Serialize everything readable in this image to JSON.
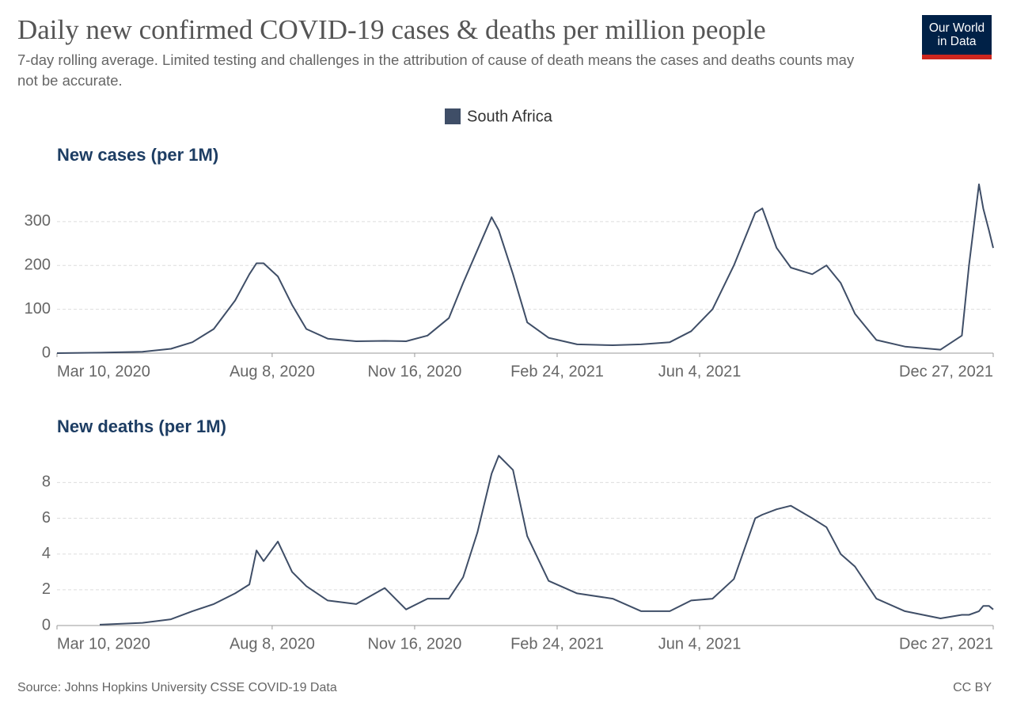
{
  "title": "Daily new confirmed COVID-19 cases & deaths per million people",
  "subtitle": "7-day rolling average. Limited testing and challenges in the attribution of cause of death means the cases and deaths counts may not be accurate.",
  "logo": "Our World in Data",
  "source": "Source: Johns Hopkins University CSSE COVID-19 Data",
  "license": "CC BY",
  "chart_data": [
    {
      "type": "line",
      "title": "New cases (per 1M)",
      "x": [
        "2020-03-10",
        "2020-04-09",
        "2020-05-09",
        "2020-05-29",
        "2020-06-13",
        "2020-06-28",
        "2020-07-13",
        "2020-07-23",
        "2020-07-28",
        "2020-08-02",
        "2020-08-12",
        "2020-08-22",
        "2020-09-01",
        "2020-09-16",
        "2020-10-06",
        "2020-10-26",
        "2020-11-10",
        "2020-11-25",
        "2020-12-10",
        "2020-12-20",
        "2020-12-30",
        "2021-01-09",
        "2021-01-14",
        "2021-01-24",
        "2021-02-03",
        "2021-02-18",
        "2021-03-10",
        "2021-04-04",
        "2021-04-24",
        "2021-05-14",
        "2021-05-29",
        "2021-06-13",
        "2021-06-28",
        "2021-07-13",
        "2021-07-18",
        "2021-07-28",
        "2021-08-07",
        "2021-08-22",
        "2021-09-01",
        "2021-09-11",
        "2021-09-21",
        "2021-10-06",
        "2021-10-26",
        "2021-11-20",
        "2021-12-05",
        "2021-12-10",
        "2021-12-17",
        "2021-12-20",
        "2021-12-24",
        "2021-12-27"
      ],
      "series": [
        {
          "name": "South Africa",
          "color": "#3f4e67",
          "values": [
            0,
            1,
            3,
            10,
            25,
            55,
            120,
            180,
            205,
            205,
            175,
            110,
            55,
            33,
            27,
            28,
            27,
            40,
            80,
            160,
            235,
            310,
            280,
            180,
            70,
            35,
            20,
            18,
            20,
            25,
            50,
            100,
            200,
            320,
            330,
            240,
            195,
            180,
            200,
            160,
            90,
            30,
            15,
            8,
            40,
            200,
            385,
            330,
            280,
            240
          ]
        }
      ],
      "xlim": [
        "2020-03-10",
        "2021-12-27"
      ],
      "xticks": [
        {
          "value": "2020-03-10",
          "label": "Mar 10, 2020"
        },
        {
          "value": "2020-08-08",
          "label": "Aug 8, 2020"
        },
        {
          "value": "2020-11-16",
          "label": "Nov 16, 2020"
        },
        {
          "value": "2021-02-24",
          "label": "Feb 24, 2021"
        },
        {
          "value": "2021-06-04",
          "label": "Jun 4, 2021"
        },
        {
          "value": "2021-12-27",
          "label": "Dec 27, 2021"
        }
      ],
      "ylim": [
        0,
        390
      ],
      "yticks": [
        0,
        100,
        200,
        300
      ],
      "grid": true
    },
    {
      "type": "line",
      "title": "New deaths (per 1M)",
      "x": [
        "2020-03-10",
        "2020-04-09",
        "2020-05-09",
        "2020-05-29",
        "2020-06-13",
        "2020-06-28",
        "2020-07-13",
        "2020-07-23",
        "2020-07-28",
        "2020-08-02",
        "2020-08-12",
        "2020-08-22",
        "2020-09-01",
        "2020-09-16",
        "2020-10-06",
        "2020-10-26",
        "2020-11-10",
        "2020-11-25",
        "2020-12-10",
        "2020-12-20",
        "2020-12-30",
        "2021-01-09",
        "2021-01-14",
        "2021-01-24",
        "2021-02-03",
        "2021-02-18",
        "2021-03-10",
        "2021-04-04",
        "2021-04-24",
        "2021-05-14",
        "2021-05-29",
        "2021-06-13",
        "2021-06-28",
        "2021-07-13",
        "2021-07-18",
        "2021-07-28",
        "2021-08-07",
        "2021-08-22",
        "2021-09-01",
        "2021-09-11",
        "2021-09-21",
        "2021-10-06",
        "2021-10-26",
        "2021-11-20",
        "2021-12-05",
        "2021-12-10",
        "2021-12-17",
        "2021-12-20",
        "2021-12-24",
        "2021-12-27"
      ],
      "series": [
        {
          "color": "#3f4e67",
          "values": [
            null,
            0.05,
            0.15,
            0.35,
            0.8,
            1.2,
            1.8,
            2.3,
            4.2,
            3.6,
            4.7,
            3.0,
            2.2,
            1.4,
            1.2,
            2.1,
            0.9,
            1.5,
            1.5,
            2.7,
            5.2,
            8.5,
            9.5,
            8.7,
            5.0,
            2.5,
            1.8,
            1.5,
            0.8,
            0.8,
            1.4,
            1.5,
            2.6,
            6.0,
            6.2,
            6.5,
            6.7,
            6.0,
            5.5,
            4.0,
            3.3,
            1.5,
            0.8,
            0.4,
            0.6,
            0.6,
            0.8,
            1.1,
            1.1,
            0.9
          ]
        }
      ],
      "xlim": [
        "2020-03-10",
        "2021-12-27"
      ],
      "xticks": [
        {
          "value": "2020-03-10",
          "label": "Mar 10, 2020"
        },
        {
          "value": "2020-08-08",
          "label": "Aug 8, 2020"
        },
        {
          "value": "2020-11-16",
          "label": "Nov 16, 2020"
        },
        {
          "value": "2021-02-24",
          "label": "Feb 24, 2021"
        },
        {
          "value": "2021-06-04",
          "label": "Jun 4, 2021"
        },
        {
          "value": "2021-12-27",
          "label": "Dec 27, 2021"
        }
      ],
      "ylim": [
        0,
        9.7
      ],
      "yticks": [
        0,
        2,
        4,
        6,
        8
      ],
      "grid": true
    }
  ]
}
